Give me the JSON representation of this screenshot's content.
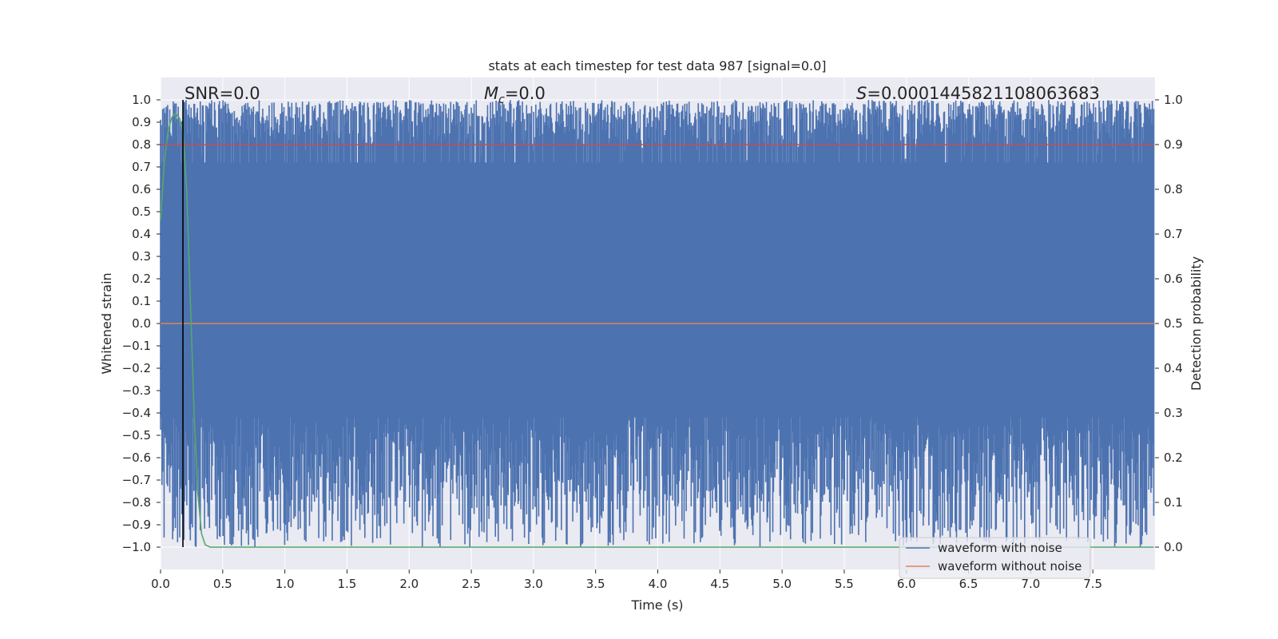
{
  "chart_data": {
    "type": "line",
    "title": "stats at each timestep for test data 987 [signal=0.0]",
    "xlabel": "Time (s)",
    "ylabel": "Whitened strain",
    "y2label": "Detection probability",
    "xlim": [
      0.0,
      8.0
    ],
    "ylim": [
      -1.1,
      1.1
    ],
    "y2lim": [
      -0.05,
      1.05
    ],
    "xticks": [
      0.0,
      0.5,
      1.0,
      1.5,
      2.0,
      2.5,
      3.0,
      3.5,
      4.0,
      4.5,
      5.0,
      5.5,
      6.0,
      6.5,
      7.0,
      7.5
    ],
    "yticks": [
      -1.0,
      -0.9,
      -0.8,
      -0.7,
      -0.6,
      -0.5,
      -0.4,
      -0.3,
      -0.2,
      -0.1,
      0.0,
      0.1,
      0.2,
      0.3,
      0.4,
      0.5,
      0.6,
      0.7,
      0.8,
      0.9,
      1.0
    ],
    "y2ticks": [
      0.0,
      0.1,
      0.2,
      0.3,
      0.4,
      0.5,
      0.6,
      0.7,
      0.8,
      0.9,
      1.0
    ],
    "grid": true,
    "annotations": {
      "snr": "SNR=0.0",
      "mc_symbol": "M",
      "mc_sub": "c",
      "mc_value": "=0.0",
      "s_symbol": "S",
      "s_value": "=0.0001445821108063683"
    },
    "marker_line_x": 0.18,
    "series": [
      {
        "name": "waveform with noise",
        "color": "#4c72b0",
        "axis": "left",
        "description_range": [
          -1.0,
          1.0
        ],
        "x_range": [
          0.0,
          7.99
        ]
      },
      {
        "name": "waveform without noise",
        "color": "#dd8452",
        "axis": "left",
        "x": [
          0.0,
          7.99
        ],
        "y": [
          0.0,
          0.0
        ]
      },
      {
        "color": "#55a868",
        "axis": "right",
        "x": [
          0.0,
          0.03,
          0.06,
          0.09,
          0.12,
          0.15,
          0.18,
          0.21,
          0.24,
          0.27,
          0.3,
          0.33,
          0.36,
          0.4,
          7.99
        ],
        "y": [
          0.73,
          0.86,
          0.93,
          0.96,
          0.97,
          0.96,
          0.93,
          0.8,
          0.55,
          0.3,
          0.12,
          0.03,
          0.005,
          0.0,
          0.0
        ]
      },
      {
        "color": "#c44e52",
        "axis": "right",
        "x": [
          0.0,
          7.99
        ],
        "y": [
          0.9,
          0.9
        ]
      }
    ],
    "legend_position": "lower-right"
  }
}
